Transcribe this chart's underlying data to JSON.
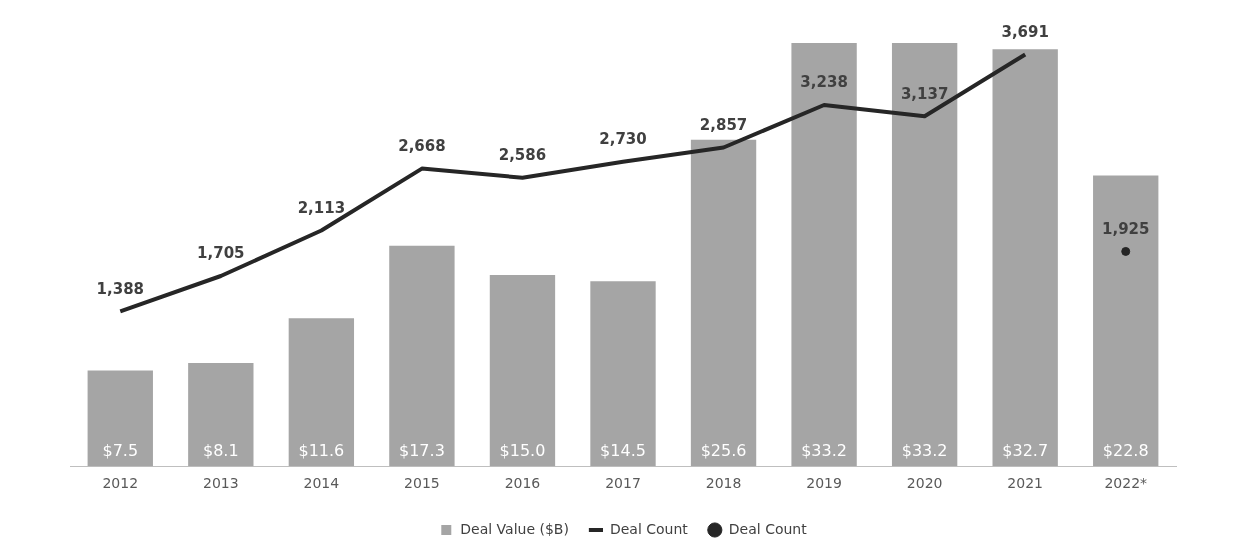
{
  "chart_data": {
    "type": "bar",
    "categories": [
      "2012",
      "2013",
      "2014",
      "2015",
      "2016",
      "2017",
      "2018",
      "2019",
      "2020",
      "2021",
      "2022*"
    ],
    "series": [
      {
        "name": "Deal Value ($B)",
        "color": "#a5a5a5",
        "values": [
          7.5,
          8.1,
          11.6,
          17.3,
          15.0,
          14.5,
          25.6,
          33.2,
          33.2,
          32.7,
          22.8
        ],
        "value_labels": [
          "$7.5",
          "$8.1",
          "$11.6",
          "$17.3",
          "$15.0",
          "$14.5",
          "$25.6",
          "$33.2",
          "$33.2",
          "$32.7",
          "$22.8"
        ]
      },
      {
        "name": "Deal Count",
        "type": "line",
        "axis": "y2",
        "color": "#262626",
        "marker": "none",
        "values": [
          1388,
          1705,
          2113,
          2668,
          2586,
          2730,
          2857,
          3238,
          3137,
          3691,
          null
        ],
        "value_labels": [
          "1,388",
          "1,705",
          "2,113",
          "2,668",
          "2,586",
          "2,730",
          "2,857",
          "3,238",
          "3,137",
          "3,691",
          null
        ]
      },
      {
        "name": "Deal Count",
        "type": "scatter",
        "axis": "y2",
        "color": "#262626",
        "marker": "circle",
        "x": [
          "2022*"
        ],
        "values": [
          1925
        ],
        "value_labels": [
          "1,925"
        ]
      }
    ],
    "tick_labels": "x",
    "grid": false,
    "legend": "bottom"
  }
}
